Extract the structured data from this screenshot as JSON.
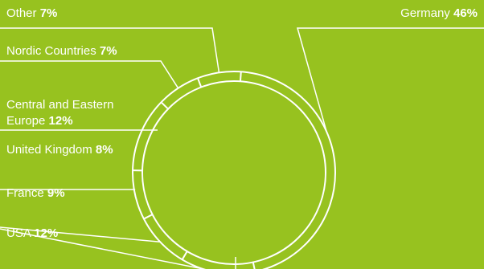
{
  "colors": {
    "background": "#97c21f",
    "line": "#ffffff",
    "text": "#ffffff"
  },
  "chart_data": {
    "type": "pie",
    "style": "donut ring with leader lines",
    "slices": [
      {
        "label": "Germany",
        "value": 46,
        "value_label": "46%"
      },
      {
        "label": "USA",
        "value": 12,
        "value_label": "12%"
      },
      {
        "label": "France",
        "value": 9,
        "value_label": "9%"
      },
      {
        "label": "United Kingdom",
        "value": 8,
        "value_label": "8%"
      },
      {
        "label": "Central and Eastern Europe",
        "value": 12,
        "value_label": "12%",
        "label_lines": [
          "Central and Eastern",
          "Europe"
        ]
      },
      {
        "label": "Nordic Countries",
        "value": 7,
        "value_label": "7%"
      },
      {
        "label": "Other",
        "value": 7,
        "value_label": "7%"
      }
    ]
  }
}
